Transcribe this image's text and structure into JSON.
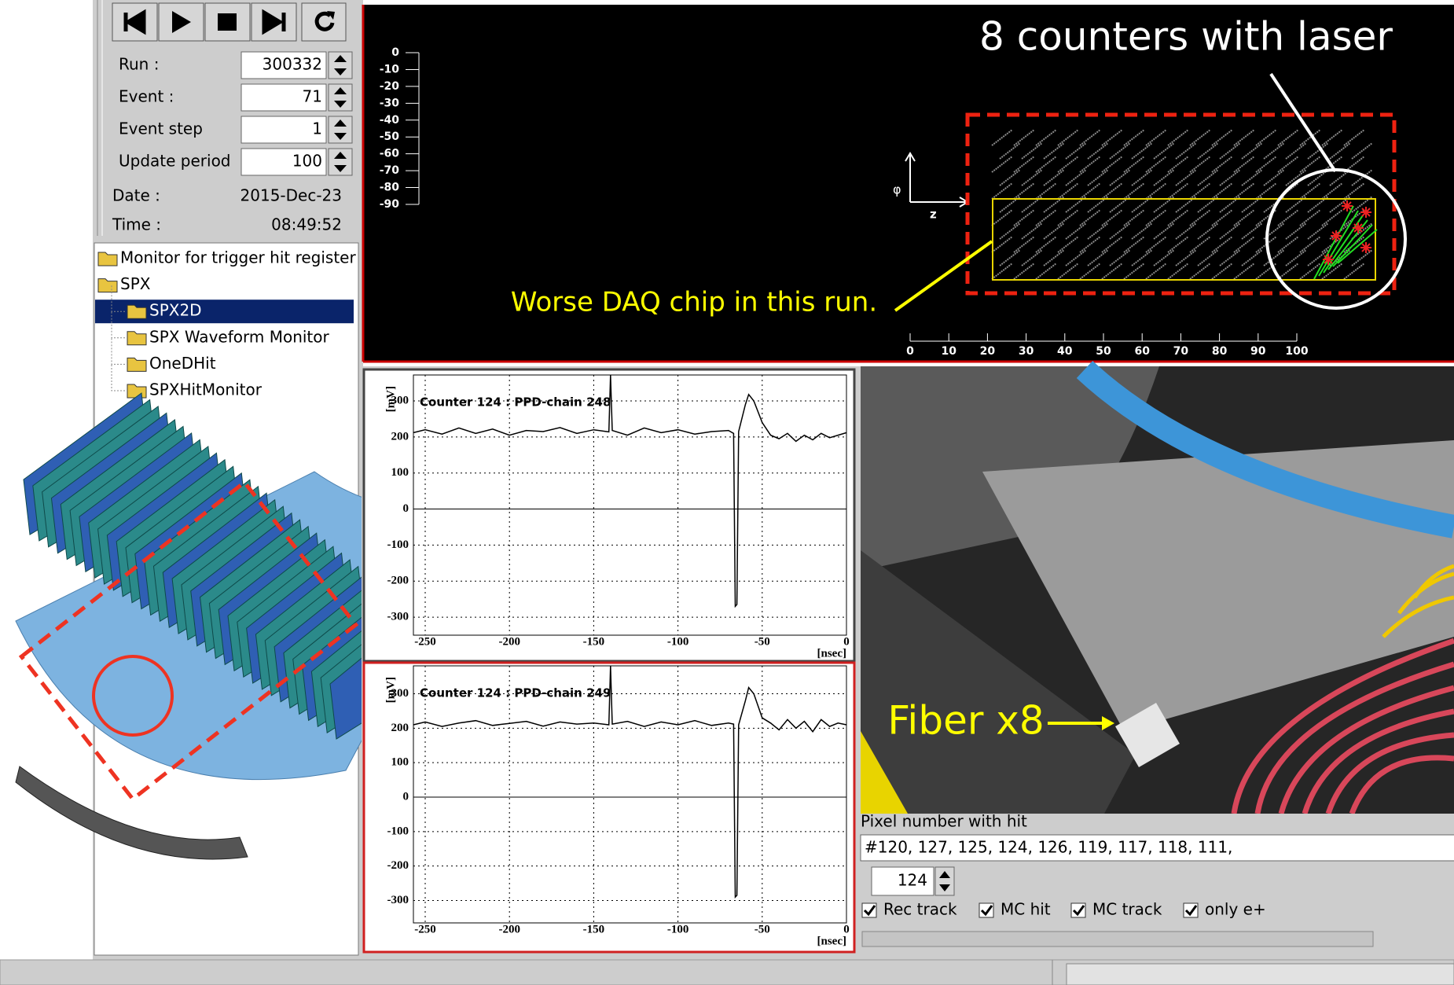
{
  "controls": {
    "fields": [
      {
        "label": "Run :",
        "value": 300332
      },
      {
        "label": "Event :",
        "value": 71
      },
      {
        "label": "Event step",
        "value": 1
      },
      {
        "label": "Update period",
        "value": 100
      }
    ],
    "date": {
      "label": "Date :",
      "value": "2015-Dec-23"
    },
    "time": {
      "label": "Time :",
      "value": "08:49:52"
    }
  },
  "tree": [
    {
      "label": "Monitor for trigger hit register"
    },
    {
      "label": "SPX",
      "children": [
        {
          "label": "SPX2D",
          "selected": true
        },
        {
          "label": "SPX Waveform Monitor"
        },
        {
          "label": "OneDHit"
        },
        {
          "label": "SPXHitMonitor"
        }
      ]
    }
  ],
  "display2d": {
    "ylim": [
      -90,
      0
    ],
    "yticks": [
      0,
      -10,
      -20,
      -30,
      -40,
      -50,
      -60,
      -70,
      -80,
      -90
    ],
    "xlim": [
      0,
      100
    ],
    "xticks": [
      0,
      10,
      20,
      30,
      40,
      50,
      60,
      70,
      80,
      90,
      100
    ],
    "phi_label": "φ",
    "z_label": "z"
  },
  "annotations": {
    "counters": "8 counters with laser",
    "daq": "Worse DAQ chip in this run.",
    "fiber": "Fiber x8"
  },
  "waveforms": [
    {
      "title": "Counter 124 : PPD-chain 248",
      "xlabel": "[nsec]",
      "ylabel": "[mV]",
      "xlim": [
        -257,
        0
      ],
      "ylim": [
        -350,
        372
      ],
      "xticks": [
        -250,
        -200,
        -150,
        -100,
        -50,
        0
      ],
      "yticks": [
        -300,
        -200,
        -100,
        0,
        100,
        200,
        300
      ],
      "x": [
        -257,
        -250,
        -240,
        -230,
        -220,
        -210,
        -200,
        -190,
        -180,
        -170,
        -160,
        -150,
        -141,
        -140,
        -139,
        -130,
        -120,
        -110,
        -100,
        -90,
        -80,
        -70,
        -67,
        -66,
        -65,
        -64,
        -60,
        -58,
        -55,
        -50,
        -45,
        -40,
        -35,
        -30,
        -25,
        -20,
        -15,
        -10,
        -5,
        0
      ],
      "values": [
        212,
        220,
        208,
        225,
        210,
        222,
        205,
        218,
        215,
        226,
        210,
        220,
        214,
        372,
        218,
        205,
        225,
        212,
        220,
        208,
        215,
        218,
        210,
        -270,
        -265,
        215,
        290,
        318,
        300,
        240,
        205,
        195,
        210,
        188,
        205,
        192,
        210,
        198,
        205,
        212
      ]
    },
    {
      "title": "Counter 124 : PPD-chain 249",
      "xlabel": "[nsec]",
      "ylabel": "[mV]",
      "xlim": [
        -257,
        0
      ],
      "ylim": [
        -365,
        381
      ],
      "xticks": [
        -250,
        -200,
        -150,
        -100,
        -50,
        0
      ],
      "yticks": [
        -300,
        -200,
        -100,
        0,
        100,
        200,
        300
      ],
      "x": [
        -257,
        -250,
        -240,
        -230,
        -220,
        -210,
        -200,
        -190,
        -180,
        -170,
        -160,
        -150,
        -141,
        -140,
        -139,
        -130,
        -120,
        -110,
        -100,
        -90,
        -80,
        -70,
        -67,
        -66,
        -65,
        -64,
        -60,
        -58,
        -55,
        -50,
        -45,
        -40,
        -35,
        -30,
        -25,
        -20,
        -15,
        -10,
        -5,
        0
      ],
      "values": [
        210,
        218,
        205,
        215,
        222,
        208,
        214,
        220,
        206,
        218,
        212,
        215,
        210,
        381,
        212,
        220,
        205,
        218,
        210,
        222,
        208,
        215,
        212,
        -290,
        -285,
        210,
        280,
        318,
        300,
        230,
        215,
        195,
        225,
        200,
        220,
        190,
        225,
        205,
        215,
        210
      ]
    }
  ],
  "hits": {
    "label": "Pixel number with hit",
    "value": "#120, 127, 125, 124, 126, 119, 117, 118, 111,"
  },
  "counter": 124,
  "checkboxes": [
    {
      "label": "Rec track",
      "checked": true
    },
    {
      "label": "MC hit",
      "checked": true
    },
    {
      "label": "MC track",
      "checked": true
    },
    {
      "label": "only e+",
      "checked": true
    }
  ]
}
